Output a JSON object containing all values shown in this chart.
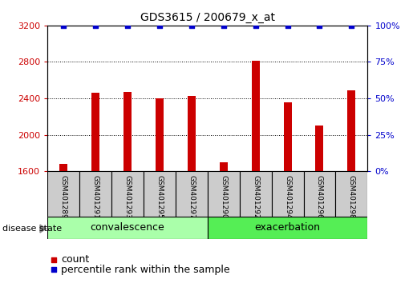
{
  "title": "GDS3615 / 200679_x_at",
  "samples": [
    "GSM401289",
    "GSM401291",
    "GSM401293",
    "GSM401295",
    "GSM401297",
    "GSM401290",
    "GSM401292",
    "GSM401294",
    "GSM401296",
    "GSM401298"
  ],
  "counts": [
    1680,
    2460,
    2470,
    2400,
    2430,
    1700,
    2810,
    2355,
    2100,
    2490
  ],
  "percentile_ranks": [
    100,
    100,
    100,
    100,
    100,
    100,
    100,
    100,
    100,
    100
  ],
  "groups": [
    {
      "label": "convalescence",
      "indices": [
        0,
        1,
        2,
        3,
        4
      ]
    },
    {
      "label": "exacerbation",
      "indices": [
        5,
        6,
        7,
        8,
        9
      ]
    }
  ],
  "ylim_left": [
    1600,
    3200
  ],
  "ylim_right": [
    0,
    100
  ],
  "yticks_left": [
    1600,
    2000,
    2400,
    2800,
    3200
  ],
  "yticks_right": [
    0,
    25,
    50,
    75,
    100
  ],
  "bar_color": "#cc0000",
  "scatter_color": "#0000cc",
  "sample_bg_color": "#cccccc",
  "group_colors": [
    "#aaffaa",
    "#55ee55"
  ],
  "disease_state_label": "disease state",
  "legend_count_label": "count",
  "legend_percentile_label": "percentile rank within the sample",
  "title_fontsize": 10,
  "tick_fontsize": 8,
  "group_label_fontsize": 9,
  "legend_fontsize": 9,
  "bar_width": 0.25
}
